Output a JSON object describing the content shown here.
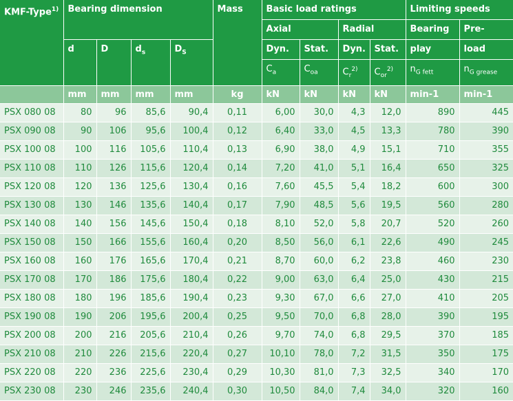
{
  "header": {
    "type": "KMF-Type",
    "type_note": "1)",
    "bearing_dimension": "Bearing dimension",
    "mass": "Mass",
    "basic_load_ratings": "Basic load ratings",
    "limiting_speeds": "Limiting speeds",
    "axial": "Axial",
    "radial": "Radial",
    "bearing": "Bearing",
    "pre": "Pre-",
    "d": "d",
    "D": "D",
    "ds_main": "d",
    "ds_sub": "s",
    "Ds_main": "D",
    "Ds_sub": "S",
    "dyn1": "Dyn.",
    "stat1": "Stat.",
    "dyn2": "Dyn.",
    "stat2": "Stat.",
    "play": "play",
    "load": "load",
    "ca_main": "C",
    "ca_sub": "a",
    "coa_main": "C",
    "coa_sub": "oa",
    "cr_main": "C",
    "cr_sub": "r",
    "cr_note": "2)",
    "cor_main": "C",
    "cor_sub": "or",
    "cor_note": "2)",
    "n1_main": "n",
    "n1_sub": "G fett",
    "n2_main": "n",
    "n2_sub": "G grease"
  },
  "units": [
    "mm",
    "mm",
    "mm",
    "mm",
    "kg",
    "kN",
    "kN",
    "kN",
    "kN",
    "min-1",
    "min-1"
  ],
  "rows": [
    [
      "PSX 080 08",
      "80",
      "96",
      "85,6",
      "90,4",
      "0,11",
      "6,00",
      "30,0",
      "4,3",
      "12,0",
      "890",
      "445"
    ],
    [
      "PSX 090 08",
      "90",
      "106",
      "95,6",
      "100,4",
      "0,12",
      "6,40",
      "33,0",
      "4,5",
      "13,3",
      "780",
      "390"
    ],
    [
      "PSX 100 08",
      "100",
      "116",
      "105,6",
      "110,4",
      "0,13",
      "6,90",
      "38,0",
      "4,9",
      "15,1",
      "710",
      "355"
    ],
    [
      "PSX 110 08",
      "110",
      "126",
      "115,6",
      "120,4",
      "0,14",
      "7,20",
      "41,0",
      "5,1",
      "16,4",
      "650",
      "325"
    ],
    [
      "PSX 120 08",
      "120",
      "136",
      "125,6",
      "130,4",
      "0,16",
      "7,60",
      "45,5",
      "5,4",
      "18,2",
      "600",
      "300"
    ],
    [
      "PSX 130 08",
      "130",
      "146",
      "135,6",
      "140,4",
      "0,17",
      "7,90",
      "48,5",
      "5,6",
      "19,5",
      "560",
      "280"
    ],
    [
      "PSX 140 08",
      "140",
      "156",
      "145,6",
      "150,4",
      "0,18",
      "8,10",
      "52,0",
      "5,8",
      "20,7",
      "520",
      "260"
    ],
    [
      "PSX 150 08",
      "150",
      "166",
      "155,6",
      "160,4",
      "0,20",
      "8,50",
      "56,0",
      "6,1",
      "22,6",
      "490",
      "245"
    ],
    [
      "PSX 160 08",
      "160",
      "176",
      "165,6",
      "170,4",
      "0,21",
      "8,70",
      "60,0",
      "6,2",
      "23,8",
      "460",
      "230"
    ],
    [
      "PSX 170 08",
      "170",
      "186",
      "175,6",
      "180,4",
      "0,22",
      "9,00",
      "63,0",
      "6,4",
      "25,0",
      "430",
      "215"
    ],
    [
      "PSX 180 08",
      "180",
      "196",
      "185,6",
      "190,4",
      "0,23",
      "9,30",
      "67,0",
      "6,6",
      "27,0",
      "410",
      "205"
    ],
    [
      "PSX 190 08",
      "190",
      "206",
      "195,6",
      "200,4",
      "0,25",
      "9,50",
      "70,0",
      "6,8",
      "28,0",
      "390",
      "195"
    ],
    [
      "PSX 200 08",
      "200",
      "216",
      "205,6",
      "210,4",
      "0,26",
      "9,70",
      "74,0",
      "6,8",
      "29,5",
      "370",
      "185"
    ],
    [
      "PSX 210 08",
      "210",
      "226",
      "215,6",
      "220,4",
      "0,27",
      "10,10",
      "78,0",
      "7,2",
      "31,5",
      "350",
      "175"
    ],
    [
      "PSX 220 08",
      "220",
      "236",
      "225,6",
      "230,4",
      "0,29",
      "10,30",
      "81,0",
      "7,3",
      "32,5",
      "340",
      "170"
    ],
    [
      "PSX 230 08",
      "230",
      "246",
      "235,6",
      "240,4",
      "0,30",
      "10,50",
      "84,0",
      "7,4",
      "34,0",
      "320",
      "160"
    ]
  ]
}
